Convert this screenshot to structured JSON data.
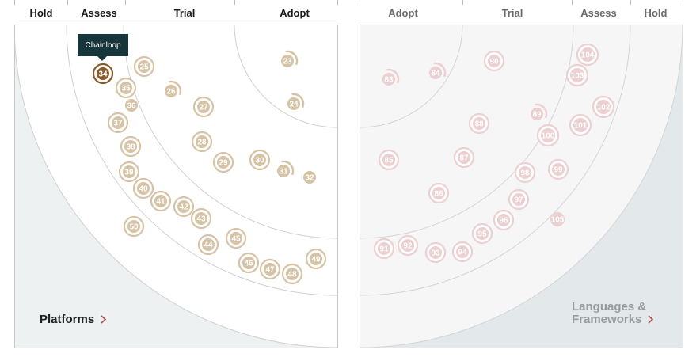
{
  "left_quadrant": {
    "title": "Platforms",
    "ring_labels": [
      "Hold",
      "Assess",
      "Trial",
      "Adopt"
    ],
    "state": "active",
    "chevron_icon": "chevron-right-icon"
  },
  "right_quadrant": {
    "title": "Languages & Frameworks",
    "ring_labels": [
      "Adopt",
      "Trial",
      "Assess",
      "Hold"
    ],
    "state": "dimmed",
    "chevron_icon": "chevron-right-icon"
  },
  "tooltip": {
    "text": "Chainloop",
    "blip": "34"
  },
  "colors": {
    "active_blip": "#8a5b2a",
    "blip": "#d6c3a6",
    "dim_blip": "#ebcfd1",
    "ring_line": "#d2d2d2",
    "hold_fill": "#edf1f2",
    "tooltip_bg": "#17363c",
    "chevron": "#b04a46"
  },
  "blips_left": [
    "23",
    "24",
    "25",
    "26",
    "27",
    "28",
    "29",
    "30",
    "31",
    "32",
    "34",
    "35",
    "36",
    "37",
    "38",
    "39",
    "40",
    "41",
    "42",
    "43",
    "44",
    "45",
    "46",
    "47",
    "48",
    "49",
    "50"
  ],
  "blips_right": [
    "83",
    "84",
    "85",
    "86",
    "87",
    "88",
    "89",
    "90",
    "91",
    "92",
    "93",
    "94",
    "95",
    "96",
    "97",
    "98",
    "99",
    "100",
    "101",
    "102",
    "103",
    "104",
    "105"
  ]
}
